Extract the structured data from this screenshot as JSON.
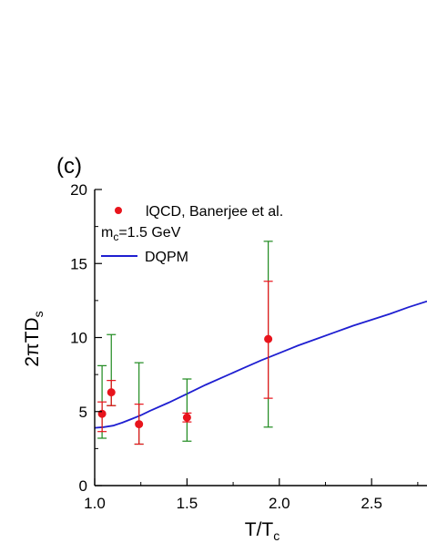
{
  "chart_data": {
    "type": "scatter",
    "panel_label": "(c)",
    "xlabel": {
      "main": "T/T",
      "sub": "c"
    },
    "ylabel": {
      "main": "2πTD",
      "sub": "s"
    },
    "xlim": [
      1.0,
      2.8
    ],
    "ylim": [
      0,
      20
    ],
    "x_ticks": [
      {
        "value": 1.0,
        "label": "1.0"
      },
      {
        "value": 1.5,
        "label": "1.5"
      },
      {
        "value": 2.0,
        "label": "2.0"
      },
      {
        "value": 2.5,
        "label": "2.5"
      }
    ],
    "y_ticks": [
      {
        "value": 0,
        "label": "0"
      },
      {
        "value": 5,
        "label": "5"
      },
      {
        "value": 10,
        "label": "10"
      },
      {
        "value": 15,
        "label": "15"
      },
      {
        "value": 20,
        "label": "20"
      }
    ],
    "grid": false,
    "legend": {
      "placement": "top-left",
      "entries": [
        {
          "marker": "dot",
          "color": "#e8141c",
          "text": "lQCD, Banerjee et al."
        },
        {
          "marker": "none",
          "main": "m",
          "sub": "c",
          "rest": "=1.5 GeV"
        },
        {
          "marker": "line",
          "color": "#1f1fd1",
          "text": "DQPM"
        }
      ]
    },
    "series": [
      {
        "name": "lQCD, Banerjee et al.",
        "kind": "points",
        "color": "#e8141c",
        "error_colors": {
          "inner": "#e8141c",
          "outer": "#1e8a1e"
        },
        "points": [
          {
            "x": 1.04,
            "y": 4.85,
            "inner": [
              3.65,
              5.65
            ],
            "outer": [
              3.2,
              8.1
            ]
          },
          {
            "x": 1.09,
            "y": 6.3,
            "inner": [
              5.4,
              7.1
            ],
            "outer": [
              5.4,
              10.2
            ]
          },
          {
            "x": 1.24,
            "y": 4.15,
            "inner": [
              2.8,
              5.5
            ],
            "outer": [
              2.8,
              8.3
            ]
          },
          {
            "x": 1.5,
            "y": 4.6,
            "inner": [
              4.3,
              4.9
            ],
            "outer": [
              3.0,
              7.2
            ]
          },
          {
            "x": 1.94,
            "y": 9.9,
            "inner": [
              5.9,
              13.8
            ],
            "outer": [
              3.95,
              16.5
            ]
          }
        ]
      },
      {
        "name": "DQPM",
        "kind": "line",
        "color": "#1f1fd1",
        "x": [
          1.0,
          1.05,
          1.1,
          1.15,
          1.2,
          1.25,
          1.3,
          1.4,
          1.5,
          1.6,
          1.7,
          1.8,
          1.9,
          2.0,
          2.1,
          2.2,
          2.3,
          2.4,
          2.5,
          2.6,
          2.7,
          2.8
        ],
        "y": [
          3.9,
          3.95,
          4.05,
          4.25,
          4.5,
          4.75,
          5.05,
          5.6,
          6.2,
          6.8,
          7.35,
          7.9,
          8.45,
          8.95,
          9.45,
          9.9,
          10.35,
          10.8,
          11.2,
          11.6,
          12.05,
          12.45
        ]
      }
    ]
  }
}
